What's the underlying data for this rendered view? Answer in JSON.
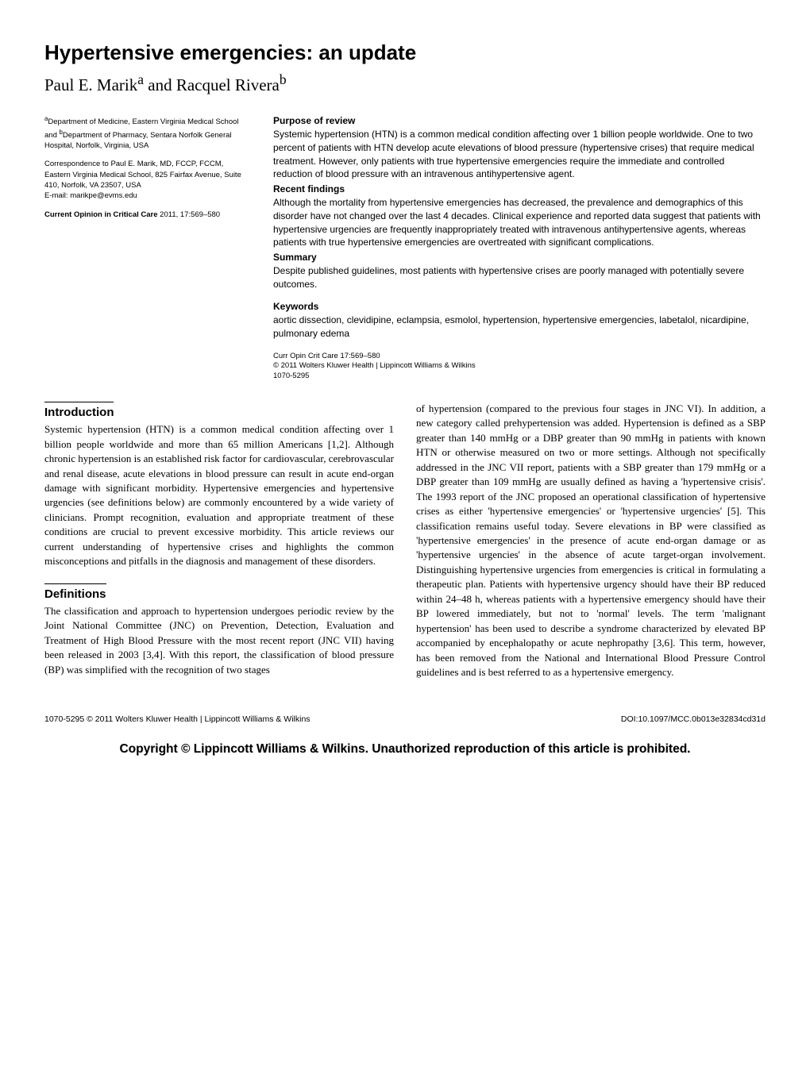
{
  "title": "Hypertensive emergencies: an update",
  "authors_html": "Paul E. Marik<sup>a</sup> and Racquel Rivera<sup>b</sup>",
  "meta": {
    "affil": "<sup>a</sup>Department of Medicine, Eastern Virginia Medical School and <sup>b</sup>Department of Pharmacy, Sentara Norfolk General Hospital, Norfolk, Virginia, USA",
    "corr": "Correspondence to Paul E. Marik, MD, FCCP, FCCM, Eastern Virginia Medical School, 825 Fairfax Avenue, Suite 410, Norfolk, VA 23507, USA",
    "email_label": "E-mail: ",
    "email": "marikpe@evms.edu",
    "journal": "Current Opinion in Critical Care",
    "journal_year": " 2011, 17:569–580"
  },
  "abstract": {
    "h_purpose": "Purpose of review",
    "purpose": "Systemic hypertension (HTN) is a common medical condition affecting over 1 billion people worldwide. One to two percent of patients with HTN develop acute elevations of blood pressure (hypertensive crises) that require medical treatment. However, only patients with true hypertensive emergencies require the immediate and controlled reduction of blood pressure with an intravenous antihypertensive agent.",
    "h_recent": "Recent findings",
    "recent": "Although the mortality from hypertensive emergencies has decreased, the prevalence and demographics of this disorder have not changed over the last 4 decades. Clinical experience and reported data suggest that patients with hypertensive urgencies are frequently inappropriately treated with intravenous antihypertensive agents, whereas patients with true hypertensive emergencies are overtreated with significant complications.",
    "h_summary": "Summary",
    "summary": "Despite published guidelines, most patients with hypertensive crises are poorly managed with potentially severe outcomes.",
    "h_keywords": "Keywords",
    "keywords": "aortic dissection, clevidipine, eclampsia, esmolol, hypertension, hypertensive emergencies, labetalol, nicardipine, pulmonary edema",
    "cite1": "Curr Opin Crit Care 17:569–580",
    "cite2": "© 2011 Wolters Kluwer Health | Lippincott Williams & Wilkins",
    "cite3": "1070-5295"
  },
  "sections": {
    "intro_h": "Introduction",
    "intro_p": "Systemic hypertension (HTN) is a common medical condition affecting over 1 billion people worldwide and more than 65 million Americans [1,2]. Although chronic hypertension is an established risk factor for cardiovascular, cerebrovascular and renal disease, acute elevations in blood pressure can result in acute end-organ damage with significant morbidity. Hypertensive emergencies and hypertensive urgencies (see definitions below) are commonly encountered by a wide variety of clinicians. Prompt recognition, evaluation and appropriate treatment of these conditions are crucial to prevent excessive morbidity. This article reviews our current understanding of hypertensive crises and highlights the common misconceptions and pitfalls in the diagnosis and management of these disorders.",
    "def_h": "Definitions",
    "def_p1": "The classification and approach to hypertension undergoes periodic review by the Joint National Committee (JNC) on Prevention, Detection, Evaluation and Treatment of High Blood Pressure with the most recent report (JNC VII) having been released in 2003 [3,4]. With this report, the classification of blood pressure (BP) was simplified with the recognition of two stages",
    "def_p2": "of hypertension (compared to the previous four stages in JNC VI). In addition, a new category called prehypertension was added. Hypertension is defined as a SBP greater than 140 mmHg or a DBP greater than 90 mmHg in patients with known HTN or otherwise measured on two or more settings. Although not specifically addressed in the JNC VII report, patients with a SBP greater than 179 mmHg or a DBP greater than 109 mmHg are usually defined as having a 'hypertensive crisis'. The 1993 report of the JNC proposed an operational classification of hypertensive crises as either 'hypertensive emergencies' or 'hypertensive urgencies' [5]. This classification remains useful today. Severe elevations in BP were classified as 'hypertensive emergencies' in the presence of acute end-organ damage or as 'hypertensive urgencies' in the absence of acute target-organ involvement. Distinguishing hypertensive urgencies from emergencies is critical in formulating a therapeutic plan. Patients with hypertensive urgency should have their BP reduced within 24–48 h, whereas patients with a hypertensive emergency should have their BP lowered immediately, but not to 'normal' levels. The term 'malignant hypertension' has been used to describe a syndrome characterized by elevated BP accompanied by encephalopathy or acute nephropathy [3,6]. This term, however, has been removed from the National and International Blood Pressure Control guidelines and is best referred to as a hypertensive emergency."
  },
  "footer": {
    "left": "1070-5295 © 2011 Wolters Kluwer Health | Lippincott Williams & Wilkins",
    "right": "DOI:10.1097/MCC.0b013e32834cd31d"
  },
  "copyright": "Copyright © Lippincott Williams & Wilkins. Unauthorized reproduction of this article is prohibited."
}
